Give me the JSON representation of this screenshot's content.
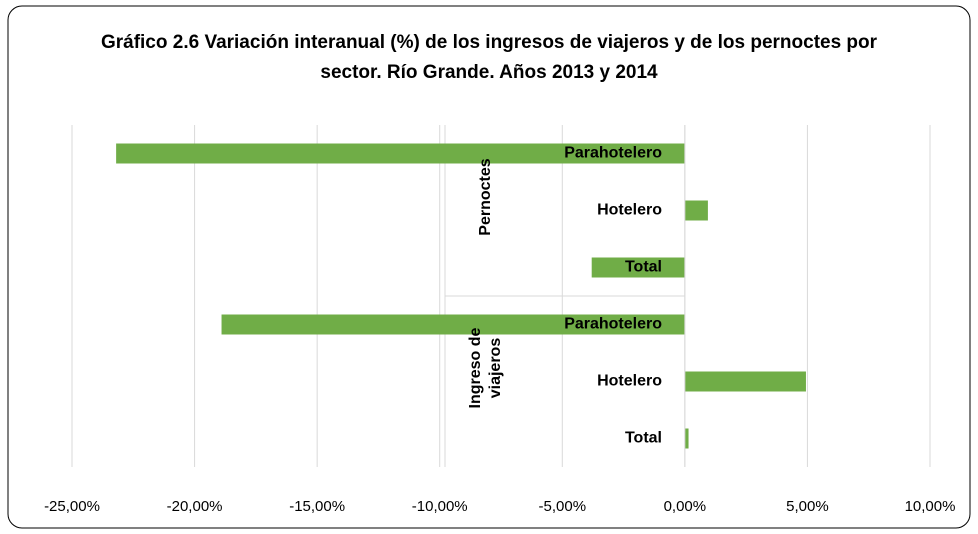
{
  "chart_data": {
    "type": "bar",
    "orientation": "horizontal",
    "title": "Gráfico 2.6 Variación interanual (%) de los ingresos de viajeros y de los pernoctes por sector. Río Grande. Años 2013 y 2014",
    "color": "#70ad47",
    "groups": [
      {
        "name": "Pernoctes",
        "categories": [
          "Parahotelero",
          "Hotelero",
          "Total"
        ],
        "values": [
          -23.2,
          0.94,
          -3.8
        ]
      },
      {
        "name": "Ingreso de viajeros",
        "categories": [
          "Parahotelero",
          "Hotelero",
          "Total"
        ],
        "values": [
          -18.9,
          4.94,
          0.15
        ]
      }
    ],
    "xlim": [
      -25,
      10
    ],
    "xticks": [
      {
        "value": -25,
        "label": "-25,00%"
      },
      {
        "value": -20,
        "label": "-20,00%"
      },
      {
        "value": -15,
        "label": "-15,00%"
      },
      {
        "value": -10,
        "label": "-10,00%"
      },
      {
        "value": -5,
        "label": "-5,00%"
      },
      {
        "value": 0,
        "label": "0,00%"
      },
      {
        "value": 5,
        "label": "5,00%"
      },
      {
        "value": 10,
        "label": "10,00%"
      }
    ],
    "grid": true
  }
}
